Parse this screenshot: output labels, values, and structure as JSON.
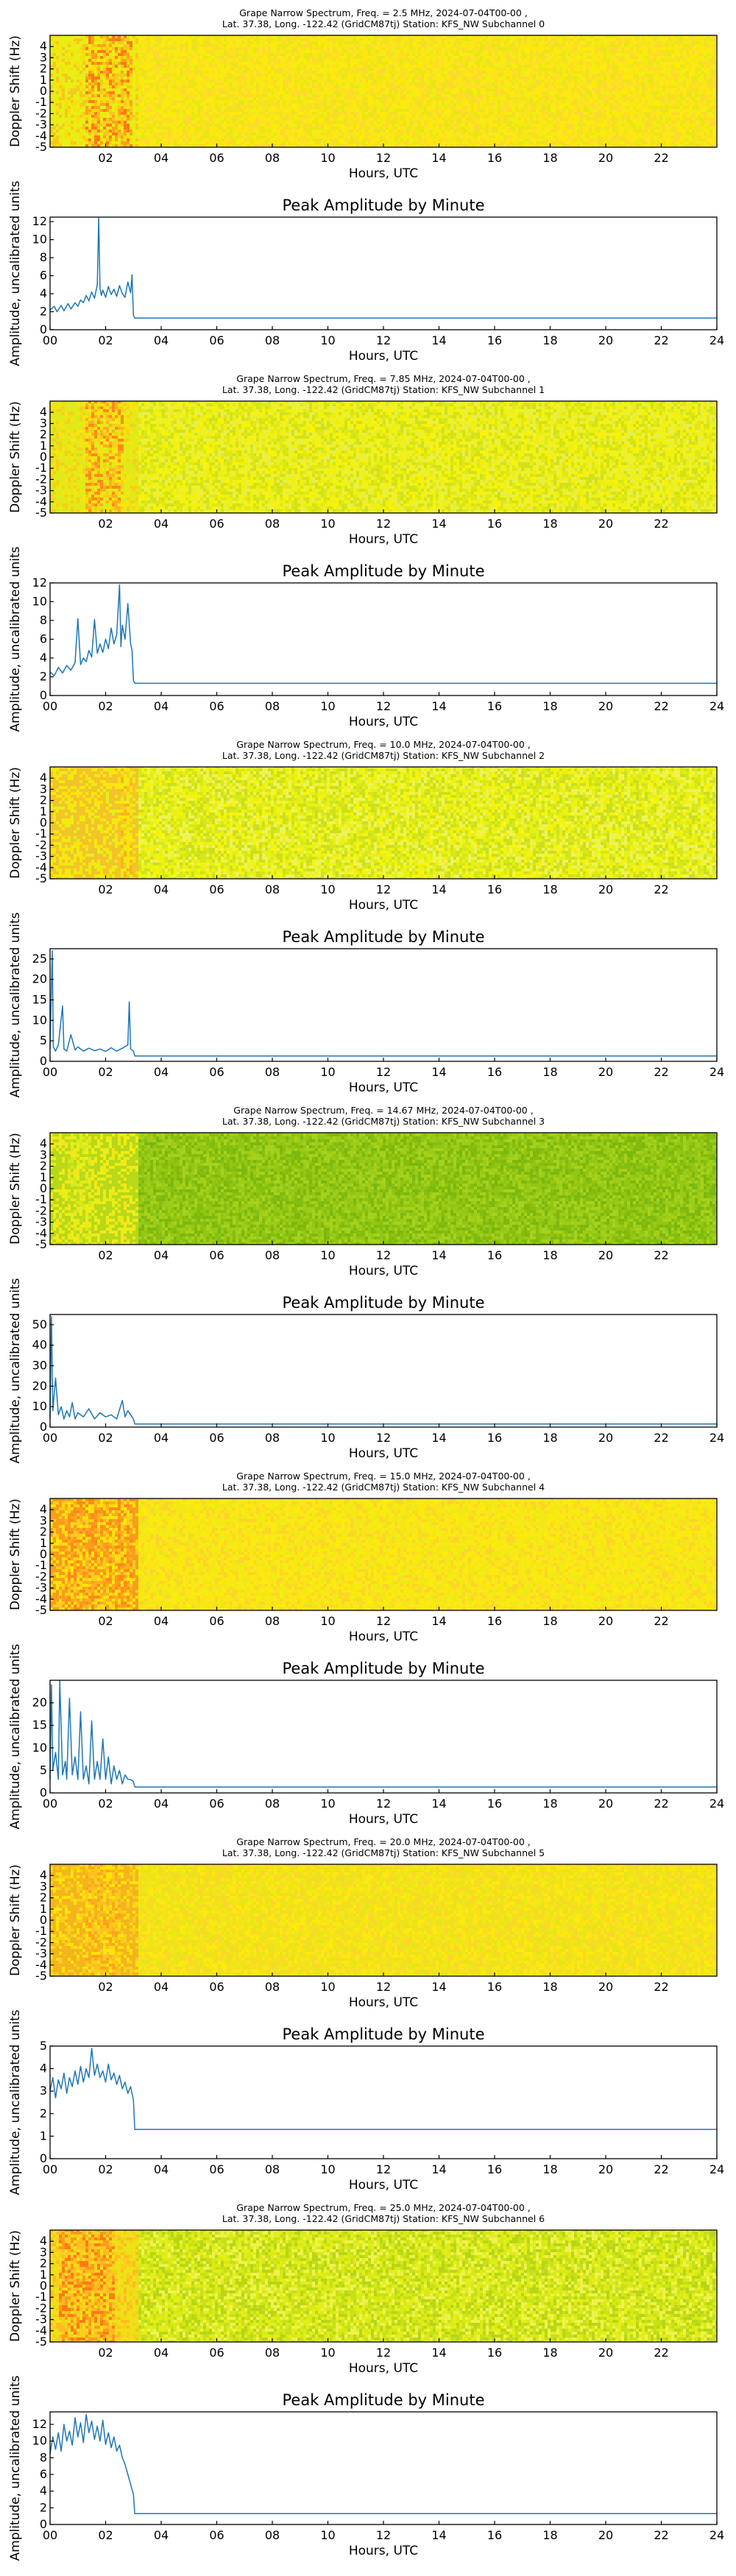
{
  "colors": {
    "line": "#1f77b4",
    "spectro_active": [
      "#ff7a14",
      "#ffa21c",
      "#f5c81e",
      "#ffdd0a",
      "#e6ef16"
    ],
    "spectro_quiet": [
      "#f3ec12",
      "#fff305",
      "#d8ea14",
      "#eef46a",
      "#c8e01a"
    ]
  },
  "chart_data": [
    {
      "type": "heatmap",
      "subchannel": 0,
      "title": [
        "Grape Narrow Spectrum, Freq. = 2.5 MHz, 2024-07-04T00-00 ,",
        "Lat.  37.38, Long. -122.42 (GridCM87tj) Station: KFS_NW Subchannel 0"
      ],
      "xlabel": "Hours, UTC",
      "ylabel": "Doppler Shift (Hz)",
      "xlim": [
        0,
        24
      ],
      "ylim": [
        -5,
        5
      ],
      "xticks": [
        "02",
        "04",
        "06",
        "08",
        "10",
        "12",
        "14",
        "16",
        "18",
        "20",
        "22"
      ],
      "yticks": [
        "4",
        "3",
        "2",
        "1",
        "0",
        "-1",
        "-2",
        "-3",
        "-4",
        "-5"
      ],
      "active_hours": [
        0,
        3
      ],
      "peak_band_hours": [
        1.2,
        2.8
      ],
      "palette": {
        "active": [
          "#ff7a14",
          "#ffa21c",
          "#f5c81e",
          "#ffdd0a",
          "#e6ef16"
        ],
        "quiet": [
          "#fae31a",
          "#ffe90a",
          "#f3ec12",
          "#e9e614",
          "#ffd830"
        ]
      }
    },
    {
      "type": "line",
      "subchannel": 0,
      "title": "Peak Amplitude by Minute",
      "xlabel": "Hours, UTC",
      "ylabel": "Amplitude, uncalibrated units",
      "xlim": [
        0,
        24
      ],
      "ylim": [
        0,
        12.5
      ],
      "xticks": [
        "00",
        "02",
        "04",
        "06",
        "08",
        "10",
        "12",
        "14",
        "16",
        "18",
        "20",
        "22",
        "24"
      ],
      "yticks": [
        "0",
        "2",
        "4",
        "6",
        "8",
        "10",
        "12"
      ],
      "x": [
        0,
        0.15,
        0.25,
        0.4,
        0.5,
        0.65,
        0.75,
        0.9,
        1.0,
        1.1,
        1.2,
        1.3,
        1.4,
        1.5,
        1.6,
        1.7,
        1.75,
        1.8,
        1.85,
        1.9,
        2.0,
        2.1,
        2.2,
        2.3,
        2.4,
        2.5,
        2.6,
        2.7,
        2.8,
        2.9,
        2.95,
        3.0,
        3.05,
        24
      ],
      "y": [
        2.2,
        2.6,
        2.0,
        2.7,
        2.1,
        2.9,
        2.3,
        3.0,
        2.6,
        3.3,
        3.0,
        3.8,
        3.2,
        4.2,
        3.5,
        5.0,
        12.4,
        4.6,
        3.8,
        4.4,
        3.6,
        4.8,
        3.9,
        4.5,
        3.7,
        4.9,
        4.0,
        3.6,
        5.3,
        4.1,
        6.1,
        1.6,
        1.3,
        1.3
      ]
    },
    {
      "type": "heatmap",
      "subchannel": 1,
      "title": [
        "Grape Narrow Spectrum, Freq. = 7.85 MHz, 2024-07-04T00-00 ,",
        "Lat.  37.38, Long. -122.42 (GridCM87tj) Station: KFS_NW Subchannel 1"
      ],
      "xlabel": "Hours, UTC",
      "ylabel": "Doppler Shift (Hz)",
      "xlim": [
        0,
        24
      ],
      "ylim": [
        -5,
        5
      ],
      "xticks": [
        "02",
        "04",
        "06",
        "08",
        "10",
        "12",
        "14",
        "16",
        "18",
        "20",
        "22"
      ],
      "yticks": [
        "4",
        "3",
        "2",
        "1",
        "0",
        "-1",
        "-2",
        "-3",
        "-4",
        "-5"
      ],
      "active_hours": [
        0,
        3
      ],
      "peak_band_hours": [
        1.2,
        2.5
      ],
      "palette": {
        "active": [
          "#ff8a18",
          "#ffae1e",
          "#f7cf1c",
          "#ffe40a",
          "#e0ea18"
        ],
        "quiet": [
          "#eef012",
          "#f8f20a",
          "#dfe816",
          "#e9ee48",
          "#d2e216"
        ]
      }
    },
    {
      "type": "line",
      "subchannel": 1,
      "title": "Peak Amplitude by Minute",
      "xlabel": "Hours, UTC",
      "ylabel": "Amplitude, uncalibrated units",
      "xlim": [
        0,
        24
      ],
      "ylim": [
        0,
        12
      ],
      "xticks": [
        "00",
        "02",
        "04",
        "06",
        "08",
        "10",
        "12",
        "14",
        "16",
        "18",
        "20",
        "22",
        "24"
      ],
      "yticks": [
        "0",
        "2",
        "4",
        "6",
        "8",
        "10",
        "12"
      ],
      "x": [
        0,
        0.15,
        0.3,
        0.45,
        0.6,
        0.75,
        0.9,
        1.0,
        1.1,
        1.2,
        1.3,
        1.4,
        1.5,
        1.6,
        1.7,
        1.8,
        1.9,
        2.0,
        2.1,
        2.2,
        2.3,
        2.4,
        2.5,
        2.55,
        2.6,
        2.7,
        2.8,
        2.9,
        2.95,
        3.0,
        3.05,
        24
      ],
      "y": [
        2.5,
        2.1,
        3.0,
        2.4,
        3.2,
        2.7,
        3.5,
        8.2,
        3.3,
        4.0,
        3.6,
        4.8,
        4.1,
        8.1,
        4.5,
        5.5,
        4.6,
        6.0,
        5.0,
        7.2,
        5.5,
        6.5,
        11.8,
        5.2,
        7.5,
        6.0,
        9.8,
        5.5,
        4.8,
        1.6,
        1.3,
        1.3
      ]
    },
    {
      "type": "heatmap",
      "subchannel": 2,
      "title": [
        "Grape Narrow Spectrum, Freq. = 10.0 MHz, 2024-07-04T00-00 ,",
        "Lat.  37.38, Long. -122.42 (GridCM87tj) Station: KFS_NW Subchannel 2"
      ],
      "xlabel": "Hours, UTC",
      "ylabel": "Doppler Shift (Hz)",
      "xlim": [
        0,
        24
      ],
      "ylim": [
        -5,
        5
      ],
      "xticks": [
        "02",
        "04",
        "06",
        "08",
        "10",
        "12",
        "14",
        "16",
        "18",
        "20",
        "22"
      ],
      "yticks": [
        "4",
        "3",
        "2",
        "1",
        "0",
        "-1",
        "-2",
        "-3",
        "-4",
        "-5"
      ],
      "active_hours": [
        0,
        3
      ],
      "peak_band_hours": [
        2.4,
        2.8
      ],
      "palette": {
        "active": [
          "#ffb020",
          "#f7cf1c",
          "#ffe40a",
          "#e6ef16",
          "#f2c42a"
        ],
        "quiet": [
          "#e8f014",
          "#f5f40e",
          "#d6e81a",
          "#eef25a",
          "#ccdf1c"
        ]
      }
    },
    {
      "type": "line",
      "subchannel": 2,
      "title": "Peak Amplitude by Minute",
      "xlabel": "Hours, UTC",
      "ylabel": "Amplitude, uncalibrated units",
      "xlim": [
        0,
        24
      ],
      "ylim": [
        0,
        27.5
      ],
      "xticks": [
        "00",
        "02",
        "04",
        "06",
        "08",
        "10",
        "12",
        "14",
        "16",
        "18",
        "20",
        "22",
        "24"
      ],
      "yticks": [
        "0",
        "5",
        "10",
        "15",
        "20",
        "25"
      ],
      "x": [
        0,
        0.08,
        0.12,
        0.2,
        0.3,
        0.45,
        0.5,
        0.6,
        0.75,
        0.9,
        1.0,
        1.2,
        1.4,
        1.6,
        1.8,
        2.0,
        2.2,
        2.4,
        2.6,
        2.8,
        2.85,
        2.9,
        3.0,
        3.05,
        24
      ],
      "y": [
        3.0,
        27.0,
        3.5,
        2.5,
        4.0,
        13.5,
        3.0,
        2.5,
        6.5,
        2.8,
        3.5,
        2.5,
        3.2,
        2.6,
        3.0,
        2.4,
        3.3,
        2.5,
        3.2,
        4.0,
        14.5,
        3.0,
        2.5,
        1.3,
        1.3
      ]
    },
    {
      "type": "heatmap",
      "subchannel": 3,
      "title": [
        "Grape Narrow Spectrum, Freq. = 14.67 MHz, 2024-07-04T00-00 ,",
        "Lat.  37.38, Long. -122.42 (GridCM87tj) Station: KFS_NW Subchannel 3"
      ],
      "xlabel": "Hours, UTC",
      "ylabel": "Doppler Shift (Hz)",
      "xlim": [
        0,
        24
      ],
      "ylim": [
        -5,
        5
      ],
      "xticks": [
        "02",
        "04",
        "06",
        "08",
        "10",
        "12",
        "14",
        "16",
        "18",
        "20",
        "22"
      ],
      "yticks": [
        "4",
        "3",
        "2",
        "1",
        "0",
        "-1",
        "-2",
        "-3",
        "-4",
        "-5"
      ],
      "active_hours": [
        0,
        3
      ],
      "peak_band_hours": [
        0.6,
        1.4
      ],
      "palette": {
        "active": [
          "#d6ea1c",
          "#c2de18",
          "#e8f014",
          "#f4e61a",
          "#b8d81a"
        ],
        "quiet": [
          "#92c614",
          "#86be10",
          "#9ccc18",
          "#7cb80e",
          "#a6d21c"
        ]
      }
    },
    {
      "type": "line",
      "subchannel": 3,
      "title": "Peak Amplitude by Minute",
      "xlabel": "Hours, UTC",
      "ylabel": "Amplitude, uncalibrated units",
      "xlim": [
        0,
        24
      ],
      "ylim": [
        0,
        55
      ],
      "xticks": [
        "00",
        "02",
        "04",
        "06",
        "08",
        "10",
        "12",
        "14",
        "16",
        "18",
        "20",
        "22",
        "24"
      ],
      "yticks": [
        "0",
        "10",
        "20",
        "30",
        "40",
        "50"
      ],
      "x": [
        0,
        0.05,
        0.1,
        0.2,
        0.3,
        0.4,
        0.5,
        0.6,
        0.7,
        0.8,
        0.9,
        1.0,
        1.2,
        1.4,
        1.6,
        1.8,
        2.0,
        2.2,
        2.4,
        2.6,
        2.7,
        2.8,
        2.9,
        3.0,
        3.05,
        24
      ],
      "y": [
        4,
        54,
        8,
        24,
        6,
        10,
        4,
        8,
        5,
        12,
        4,
        7,
        5,
        9,
        4,
        7,
        5,
        6,
        4,
        13,
        5,
        8,
        6,
        4,
        1.5,
        1.5
      ]
    },
    {
      "type": "heatmap",
      "subchannel": 4,
      "title": [
        "Grape Narrow Spectrum, Freq. = 15.0 MHz, 2024-07-04T00-00 ,",
        "Lat.  37.38, Long. -122.42 (GridCM87tj) Station: KFS_NW Subchannel 4"
      ],
      "xlabel": "Hours, UTC",
      "ylabel": "Doppler Shift (Hz)",
      "xlim": [
        0,
        24
      ],
      "ylim": [
        -5,
        5
      ],
      "xticks": [
        "02",
        "04",
        "06",
        "08",
        "10",
        "12",
        "14",
        "16",
        "18",
        "20",
        "22"
      ],
      "yticks": [
        "4",
        "3",
        "2",
        "1",
        "0",
        "-1",
        "-2",
        "-3",
        "-4",
        "-5"
      ],
      "active_hours": [
        0,
        3
      ],
      "peak_band_hours": [
        0.5,
        2.8
      ],
      "palette": {
        "active": [
          "#ff8a18",
          "#ffae1e",
          "#f7cf1c",
          "#ffe40a",
          "#fa9c1c"
        ],
        "quiet": [
          "#fae31a",
          "#ffe90a",
          "#f3ec12",
          "#fdd42a",
          "#eee816"
        ]
      }
    },
    {
      "type": "line",
      "subchannel": 4,
      "title": "Peak Amplitude by Minute",
      "xlabel": "Hours, UTC",
      "ylabel": "Amplitude, uncalibrated units",
      "xlim": [
        0,
        24
      ],
      "ylim": [
        0,
        25
      ],
      "xticks": [
        "00",
        "02",
        "04",
        "06",
        "08",
        "10",
        "12",
        "14",
        "16",
        "18",
        "20",
        "22",
        "24"
      ],
      "yticks": [
        "0",
        "5",
        "10",
        "15",
        "20"
      ],
      "x": [
        0,
        0.05,
        0.1,
        0.2,
        0.3,
        0.35,
        0.45,
        0.55,
        0.6,
        0.7,
        0.8,
        0.9,
        1.0,
        1.1,
        1.2,
        1.3,
        1.4,
        1.5,
        1.6,
        1.7,
        1.8,
        1.9,
        2.0,
        2.1,
        2.2,
        2.3,
        2.4,
        2.5,
        2.6,
        2.7,
        2.8,
        2.9,
        3.0,
        3.05,
        24
      ],
      "y": [
        3,
        24,
        5,
        9,
        3,
        25,
        4,
        7,
        3,
        21,
        4,
        8,
        3,
        18,
        3,
        6,
        2,
        16,
        3,
        7,
        3,
        12,
        3,
        8,
        2,
        6,
        3,
        5,
        2,
        4,
        3,
        3,
        2.5,
        1.3,
        1.3
      ]
    },
    {
      "type": "heatmap",
      "subchannel": 5,
      "title": [
        "Grape Narrow Spectrum, Freq. = 20.0 MHz, 2024-07-04T00-00 ,",
        "Lat.  37.38, Long. -122.42 (GridCM87tj) Station: KFS_NW Subchannel 5"
      ],
      "xlabel": "Hours, UTC",
      "ylabel": "Doppler Shift (Hz)",
      "xlim": [
        0,
        24
      ],
      "ylim": [
        -5,
        5
      ],
      "xticks": [
        "02",
        "04",
        "06",
        "08",
        "10",
        "12",
        "14",
        "16",
        "18",
        "20",
        "22"
      ],
      "yticks": [
        "4",
        "3",
        "2",
        "1",
        "0",
        "-1",
        "-2",
        "-3",
        "-4",
        "-5"
      ],
      "active_hours": [
        0,
        3
      ],
      "peak_band_hours": [
        1.2,
        2.4
      ],
      "palette": {
        "active": [
          "#ffa21c",
          "#ffc020",
          "#f7cf1c",
          "#ffe40a",
          "#f5b41c"
        ],
        "quiet": [
          "#f4e21a",
          "#ffe80c",
          "#eee816",
          "#fbd72a",
          "#e8e418"
        ]
      }
    },
    {
      "type": "line",
      "subchannel": 5,
      "title": "Peak Amplitude by Minute",
      "xlabel": "Hours, UTC",
      "ylabel": "Amplitude, uncalibrated units",
      "xlim": [
        0,
        24
      ],
      "ylim": [
        0,
        5
      ],
      "xticks": [
        "00",
        "02",
        "04",
        "06",
        "08",
        "10",
        "12",
        "14",
        "16",
        "18",
        "20",
        "22",
        "24"
      ],
      "yticks": [
        "0",
        "1",
        "2",
        "3",
        "4",
        "5"
      ],
      "x": [
        0,
        0.1,
        0.2,
        0.3,
        0.4,
        0.5,
        0.6,
        0.7,
        0.8,
        0.9,
        1.0,
        1.1,
        1.2,
        1.3,
        1.4,
        1.5,
        1.6,
        1.7,
        1.8,
        1.9,
        2.0,
        2.1,
        2.2,
        2.3,
        2.4,
        2.5,
        2.6,
        2.7,
        2.8,
        2.9,
        3.0,
        3.05,
        24
      ],
      "y": [
        3.0,
        3.6,
        2.7,
        3.5,
        3.1,
        3.8,
        2.9,
        3.6,
        3.2,
        3.9,
        3.3,
        4.1,
        3.4,
        4.0,
        3.6,
        4.9,
        3.7,
        4.2,
        3.6,
        3.9,
        3.4,
        4.2,
        3.5,
        3.8,
        3.3,
        3.7,
        3.1,
        3.4,
        2.9,
        3.2,
        2.6,
        1.3,
        1.3
      ]
    },
    {
      "type": "heatmap",
      "subchannel": 6,
      "title": [
        "Grape Narrow Spectrum, Freq. = 25.0 MHz, 2024-07-04T00-00 ,",
        "Lat.  37.38, Long. -122.42 (GridCM87tj) Station: KFS_NW Subchannel 6"
      ],
      "xlabel": "Hours, UTC",
      "ylabel": "Doppler Shift (Hz)",
      "xlim": [
        0,
        24
      ],
      "ylim": [
        -5,
        5
      ],
      "xticks": [
        "02",
        "04",
        "06",
        "08",
        "10",
        "12",
        "14",
        "16",
        "18",
        "20",
        "22"
      ],
      "yticks": [
        "4",
        "3",
        "2",
        "1",
        "0",
        "-1",
        "-2",
        "-3",
        "-4",
        "-5"
      ],
      "active_hours": [
        0,
        3
      ],
      "peak_band_hours": [
        0.3,
        2.2
      ],
      "palette": {
        "active": [
          "#ff7a14",
          "#ff9a1c",
          "#ffbb22",
          "#f7cf1c",
          "#f0e016"
        ],
        "quiet": [
          "#d8ea14",
          "#c6e01a",
          "#e4ee18",
          "#b8d616",
          "#eef24e"
        ]
      }
    },
    {
      "type": "line",
      "subchannel": 6,
      "title": "Peak Amplitude by Minute",
      "xlabel": "Hours, UTC",
      "ylabel": "Amplitude, uncalibrated units",
      "xlim": [
        0,
        24
      ],
      "ylim": [
        0,
        13.5
      ],
      "xticks": [
        "00",
        "02",
        "04",
        "06",
        "08",
        "10",
        "12",
        "14",
        "16",
        "18",
        "20",
        "22",
        "24"
      ],
      "yticks": [
        "0",
        "2",
        "4",
        "6",
        "8",
        "10",
        "12"
      ],
      "x": [
        0,
        0.1,
        0.2,
        0.3,
        0.4,
        0.5,
        0.6,
        0.7,
        0.8,
        0.9,
        1.0,
        1.1,
        1.2,
        1.3,
        1.4,
        1.5,
        1.6,
        1.7,
        1.8,
        1.9,
        2.0,
        2.1,
        2.2,
        2.3,
        2.4,
        2.5,
        2.6,
        2.7,
        2.8,
        2.9,
        3.0,
        3.05,
        24
      ],
      "y": [
        8.5,
        10.5,
        9.0,
        11.0,
        8.8,
        12.0,
        10.0,
        11.2,
        9.5,
        12.8,
        10.5,
        12.2,
        9.8,
        13.2,
        11.0,
        12.4,
        10.2,
        11.8,
        10.0,
        12.5,
        9.6,
        11.0,
        9.2,
        10.5,
        8.8,
        9.5,
        8.0,
        7.2,
        6.0,
        4.8,
        3.6,
        1.3,
        1.3
      ]
    }
  ]
}
